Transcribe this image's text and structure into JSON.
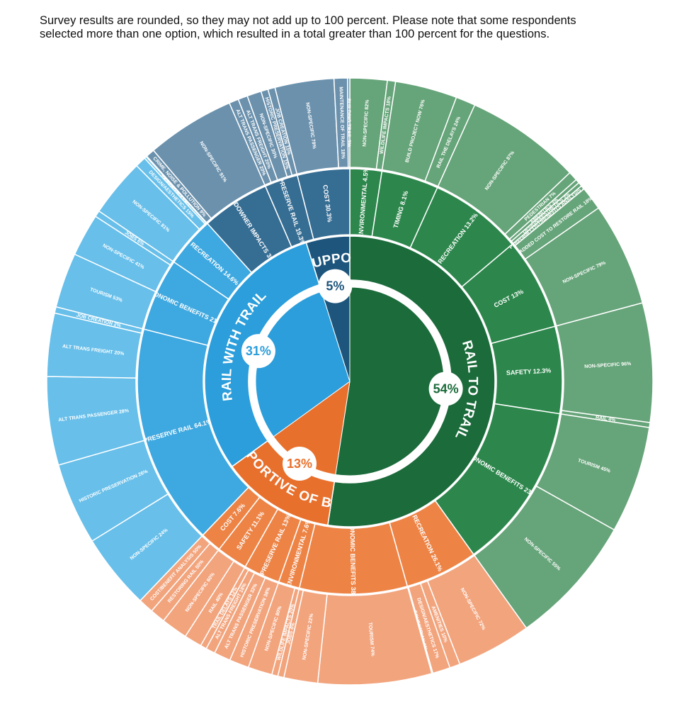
{
  "note": "Survey results are rounded, so they may not add up to 100 percent. Please note that some respondents selected more than one option, which resulted in a total greater than 100 percent for the questions.",
  "chart_data": {
    "type": "sunburst",
    "groups": [
      {
        "name": "RAIL TO TRAIL",
        "value": 54,
        "value_label": "54%",
        "colors": [
          "#1b6b3b",
          "#2d874c",
          "#66a479"
        ],
        "segments": [
          {
            "name": "ENVIRONMENTAL",
            "value": 4.5,
            "value_label": "4.5%",
            "children": [
              {
                "name": "NON-SPECIFIC",
                "value": 82,
                "value_label": "82%"
              },
              {
                "name": "WILDLIFE IMPACTS",
                "value": 18,
                "value_label": "18%"
              }
            ]
          },
          {
            "name": "TIMING",
            "value": 8.1,
            "value_label": "8.1%",
            "children": [
              {
                "name": "BUILD PROJECT NOW",
                "value": 76,
                "value_label": "76%"
              },
              {
                "name": "RAIL THE DELAYS",
                "value": 24,
                "value_label": "24%"
              }
            ]
          },
          {
            "name": "RECREATION",
            "value": 13.2,
            "value_label": "13.2%",
            "children": [
              {
                "name": "NON-SPECIFIC",
                "value": 87,
                "value_label": "87%"
              },
              {
                "name": "PEDESTRIAN",
                "value": 7,
                "value_label": "7%"
              },
              {
                "name": "AMENITIES",
                "value": 3,
                "value_label": "3%"
              },
              {
                "name": "DESIGN/AESTHETICS",
                "value": 3,
                "value_label": "3%"
              }
            ]
          },
          {
            "name": "COST",
            "value": 13,
            "value_label": "13%",
            "children": [
              {
                "name": "PERFORM COST/BENEFITS ANALYSIS",
                "value": 3,
                "value_label": "3%"
              },
              {
                "name": "ADDED COST TO RESTORE RAIL",
                "value": 18,
                "value_label": "18%"
              },
              {
                "name": "NON-SPECIFIC",
                "value": 79,
                "value_label": "79%"
              }
            ]
          },
          {
            "name": "SAFETY",
            "value": 12.3,
            "value_label": "12.3%",
            "children": [
              {
                "name": "NON-SPECIFIC",
                "value": 96,
                "value_label": "96%"
              },
              {
                "name": "RAIL",
                "value": 4,
                "value_label": "4%"
              }
            ]
          },
          {
            "name": "ECONOMIC BENEFITS",
            "value": 23.6,
            "value_label": "23.6%",
            "children": [
              {
                "name": "TOURISM",
                "value": 45,
                "value_label": "45%"
              },
              {
                "name": "NON-SPECIFIC",
                "value": 55,
                "value_label": "55%"
              }
            ]
          }
        ]
      },
      {
        "name": "SUPPORTIVE OF BOTH",
        "value": 13,
        "value_label": "13%",
        "colors": [
          "#e8702d",
          "#ed8446",
          "#f2a47d"
        ],
        "segments": [
          {
            "name": "RECREATION",
            "value": 26.1,
            "value_label": "26.1%",
            "children": [
              {
                "name": "NON-SPECIFIC",
                "value": 72,
                "value_label": "72%"
              },
              {
                "name": "AMENITIES",
                "value": 10,
                "value_label": "10%"
              },
              {
                "name": "DESIGN/AESTHETICS",
                "value": 17,
                "value_label": "17%"
              },
              {
                "name": "EQUESTRIAN",
                "value": 1,
                "value_label": "1%"
              }
            ]
          },
          {
            "name": "ECONOMIC BENEFITS",
            "value": 38.6,
            "value_label": "38.6%",
            "children": [
              {
                "name": "TOURISM",
                "value": 74,
                "value_label": "74%"
              },
              {
                "name": "NON-SPECIFIC",
                "value": 22,
                "value_label": "22%"
              },
              {
                "name": "JOBS",
                "value": 4,
                "value_label": "4%"
              }
            ]
          },
          {
            "name": "ENVIRONMENTAL",
            "value": 7.6,
            "value_label": "7.6%",
            "children": [
              {
                "name": "WILDLIFE IMPACTS",
                "value": 20,
                "value_label": "20%"
              },
              {
                "name": "NON-SPECIFIC",
                "value": 80,
                "value_label": "80%"
              }
            ]
          },
          {
            "name": "PRESERVE RAIL",
            "value": 13,
            "value_label": "13%",
            "children": [
              {
                "name": "HISTORIC PRESERVATION",
                "value": 38,
                "value_label": "38%"
              },
              {
                "name": "ALT TRANS PASSENGER",
                "value": 32,
                "value_label": "32%"
              },
              {
                "name": "ALT TRANS FREIGHT",
                "value": 18,
                "value_label": "18%"
              },
              {
                "name": "TRAIL DELAYS",
                "value": 12,
                "value_label": "12%"
              }
            ]
          },
          {
            "name": "SAFETY",
            "value": 11.1,
            "value_label": "11.1%",
            "children": [
              {
                "name": "RAIL",
                "value": 40,
                "value_label": "40%"
              },
              {
                "name": "NON-SPECIFIC",
                "value": 60,
                "value_label": "60%"
              }
            ]
          },
          {
            "name": "COST",
            "value": 7.6,
            "value_label": "7.6%",
            "children": [
              {
                "name": "RESTORING RAIL",
                "value": 50,
                "value_label": "50%"
              },
              {
                "name": "COST/BENEFIT ANALYSIS",
                "value": 50,
                "value_label": "50%"
              }
            ]
          }
        ]
      },
      {
        "name": "RAIL WITH TRAIL",
        "value": 31,
        "value_label": "31%",
        "colors": [
          "#2b9edb",
          "#3ea8e0",
          "#67bfea"
        ],
        "segments": [
          {
            "name": "PRESERVE RAIL",
            "value": 64.1,
            "value_label": "64.1%",
            "children": [
              {
                "name": "NON-SPECIFIC",
                "value": 24,
                "value_label": "24%"
              },
              {
                "name": "HISTORIC PRESERVATION",
                "value": 26,
                "value_label": "26%"
              },
              {
                "name": "ALT TRANS PASSENGER",
                "value": 28,
                "value_label": "28%"
              },
              {
                "name": "ALT TRANS FREIGHT",
                "value": 20,
                "value_label": "20%"
              },
              {
                "name": "JOB CREATION",
                "value": 2,
                "value_label": "2%"
              }
            ]
          },
          {
            "name": "ECONOMIC BENEFITS",
            "value": 21.1,
            "value_label": "21.1%",
            "children": [
              {
                "name": "TOURISM",
                "value": 53,
                "value_label": "53%"
              },
              {
                "name": "NON-SPECIFIC",
                "value": 41,
                "value_label": "41%"
              },
              {
                "name": "JOBS",
                "value": 6,
                "value_label": "6%"
              }
            ]
          },
          {
            "name": "RECREATION",
            "value": 14.6,
            "value_label": "14.6%",
            "children": [
              {
                "name": "NON-SPECIFIC",
                "value": 81,
                "value_label": "81%"
              },
              {
                "name": "DESIGN/AESTHETICS",
                "value": 15,
                "value_label": "15%"
              },
              {
                "name": "AMENITIES",
                "value": 3,
                "value_label": "3%"
              },
              {
                "name": "EQUESTRIAN",
                "value": 1,
                "value_label": "1%"
              }
            ]
          }
        ]
      },
      {
        "name": "NOT SUPPORTIVE",
        "value": 5,
        "value_label": "5%",
        "colors": [
          "#1d557c",
          "#366d93",
          "#6b91ad"
        ],
        "segments": [
          {
            "name": "LANDOWNER IMPACTS",
            "value": 39.5,
            "value_label": "39.5%",
            "children": [
              {
                "name": "CRIME, NOISE & POLLUTION",
                "value": 9,
                "value_label": "9%"
              },
              {
                "name": "NON-SPECIFIC",
                "value": 91,
                "value_label": "91%"
              }
            ]
          },
          {
            "name": "PRESERVE RAIL",
            "value": 19.3,
            "value_label": "19.3%",
            "children": [
              {
                "name": "ALT TRANS PASSENGER",
                "value": 20,
                "value_label": "20%"
              },
              {
                "name": "ALT TRANS FREIGHT",
                "value": 20,
                "value_label": "20%"
              },
              {
                "name": "NON-SPECIFIC",
                "value": 30,
                "value_label": "30%"
              },
              {
                "name": "HISTORIC PRESERVATION",
                "value": 15,
                "value_label": "15%"
              },
              {
                "name": "JOB CREATION",
                "value": 15,
                "value_label": "15%"
              }
            ]
          },
          {
            "name": "COST",
            "value": 30.3,
            "value_label": "30.3%",
            "children": [
              {
                "name": "NON-SPECIFIC",
                "value": 79,
                "value_label": "79%"
              },
              {
                "name": "MAINTENANCE OF TRAIL",
                "value": 18,
                "value_label": "18%"
              },
              {
                "name": "BUILDING TRAIL",
                "value": 3,
                "value_label": "3%"
              }
            ]
          }
        ]
      }
    ]
  }
}
